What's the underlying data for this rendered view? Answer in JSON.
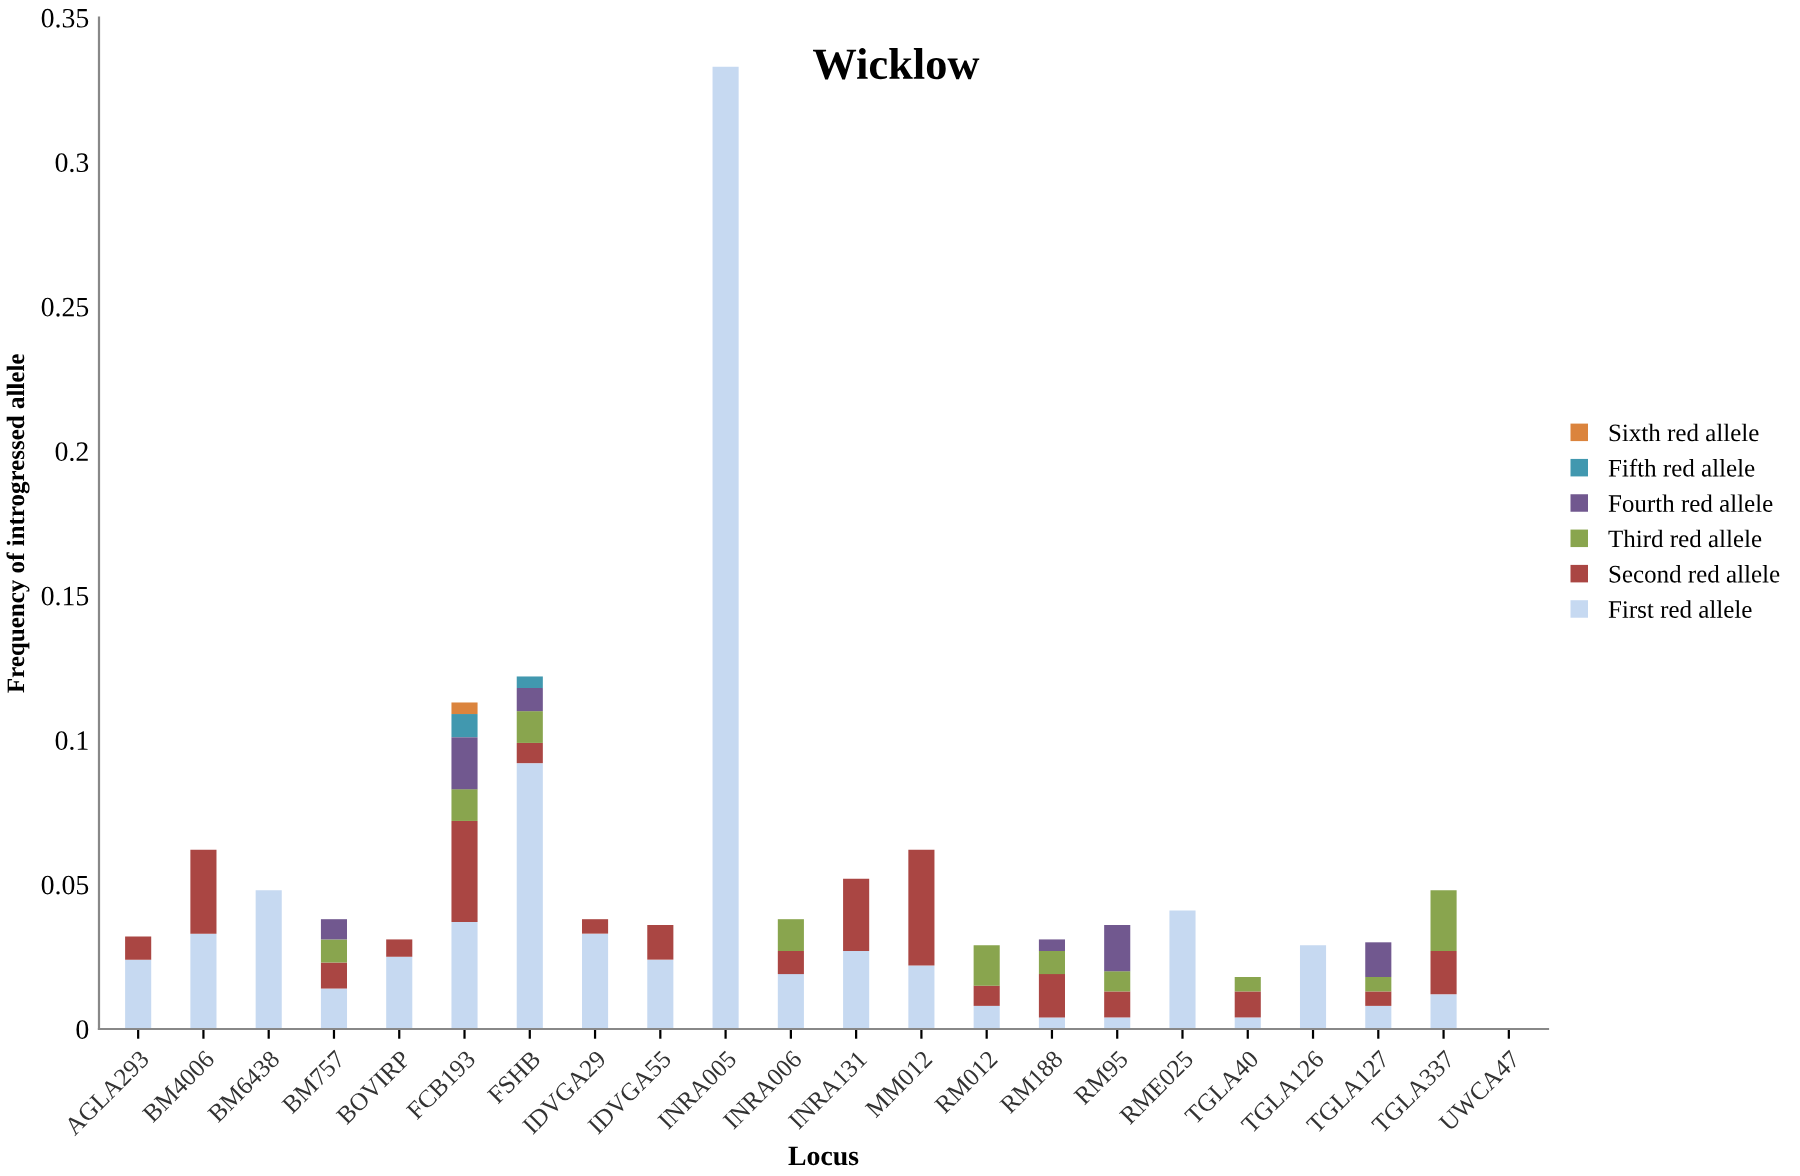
{
  "chart_data": {
    "type": "bar",
    "title": "Wicklow",
    "xlabel": "Locus",
    "ylabel": "Frequency of introgressed allele",
    "stacked": true,
    "legend": "right",
    "grid": false,
    "categories": [
      "AGLA293",
      "BM4006",
      "BM6438",
      "BM757",
      "BOVIRP",
      "FCB193",
      "FSHB",
      "IDVGA29",
      "IDVGA55",
      "INRA005",
      "INRA006",
      "INRA131",
      "MM012",
      "RM012",
      "RM188",
      "RM95",
      "RME025",
      "TGLA40",
      "TGLA126",
      "TGLA127",
      "TGLA337",
      "UWCA47"
    ],
    "series": [
      {
        "name": "First red allele",
        "color": "#c6d9f1",
        "values": [
          0.024,
          0.033,
          0.048,
          0.014,
          0.025,
          0.037,
          0.092,
          0.033,
          0.024,
          0.333,
          0.019,
          0.027,
          0.022,
          0.008,
          0.004,
          0.004,
          0.041,
          0.004,
          0.029,
          0.008,
          0.012,
          0
        ]
      },
      {
        "name": "Second red allele",
        "color": "#aa4643",
        "values": [
          0.008,
          0.029,
          0,
          0.009,
          0.006,
          0.035,
          0.007,
          0.005,
          0.012,
          0,
          0.008,
          0.025,
          0.04,
          0.007,
          0.015,
          0.009,
          0,
          0.009,
          0,
          0.005,
          0.015,
          0
        ]
      },
      {
        "name": "Third red allele",
        "color": "#89a54e",
        "values": [
          0,
          0,
          0,
          0.008,
          0,
          0.011,
          0.011,
          0,
          0,
          0,
          0.011,
          0,
          0,
          0.014,
          0.008,
          0.007,
          0,
          0.005,
          0,
          0.005,
          0.021,
          0
        ]
      },
      {
        "name": "Fourth red allele",
        "color": "#71588f",
        "values": [
          0,
          0,
          0,
          0.007,
          0,
          0.018,
          0.008,
          0,
          0,
          0,
          0,
          0,
          0,
          0,
          0.004,
          0.016,
          0,
          0,
          0,
          0.012,
          0,
          0
        ]
      },
      {
        "name": "Fifth red allele",
        "color": "#4198af",
        "values": [
          0,
          0,
          0,
          0,
          0,
          0.008,
          0.004,
          0,
          0,
          0,
          0,
          0,
          0,
          0,
          0,
          0,
          0,
          0,
          0,
          0,
          0,
          0
        ]
      },
      {
        "name": "Sixth red allele",
        "color": "#db843d",
        "values": [
          0,
          0,
          0,
          0,
          0,
          0.004,
          0,
          0,
          0,
          0,
          0,
          0,
          0,
          0,
          0,
          0,
          0,
          0,
          0,
          0,
          0,
          0
        ]
      }
    ],
    "ylim": [
      0,
      0.35
    ],
    "yticks": [
      0,
      0.05,
      0.1,
      0.15,
      0.2,
      0.25,
      0.3,
      0.35
    ]
  }
}
